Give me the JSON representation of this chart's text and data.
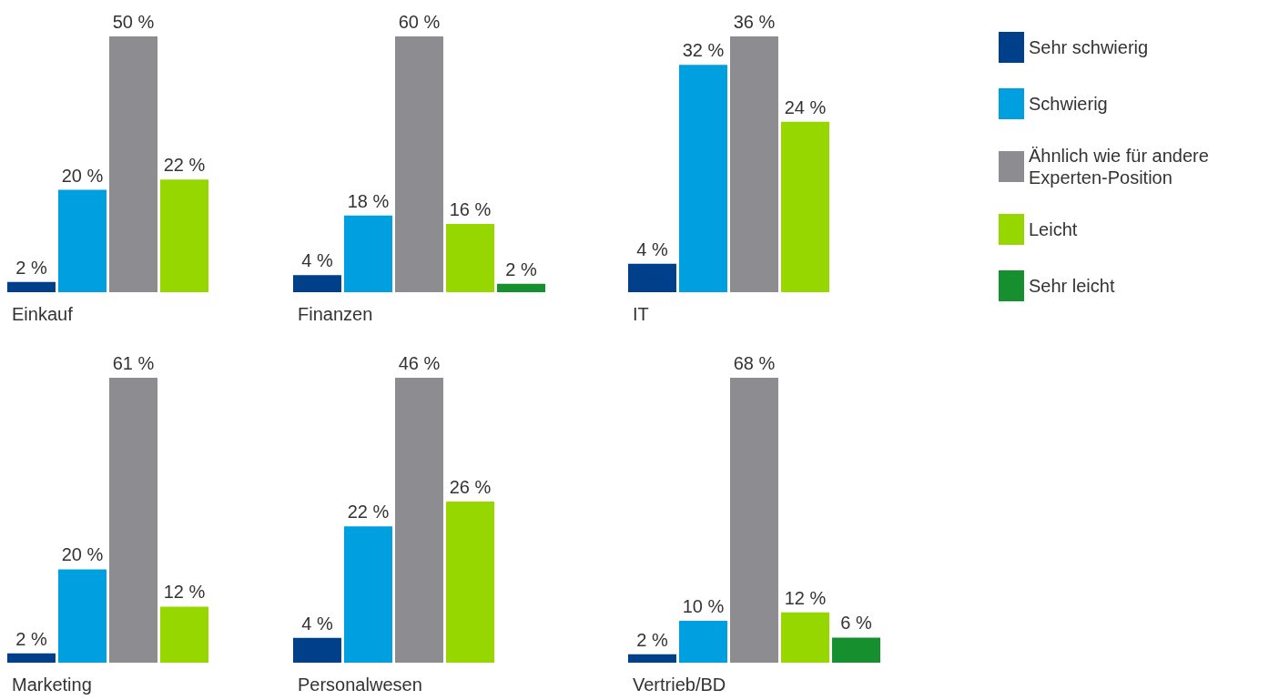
{
  "chart_data": [
    {
      "type": "bar",
      "xlabel": "Einkauf",
      "categories": [
        null
      ],
      "series": [
        {
          "color": "#003f8a",
          "values": [
            2
          ],
          "value_labels": [
            "2 %"
          ]
        },
        {
          "color": "#009fe0",
          "values": [
            20
          ],
          "value_labels": [
            "20 %"
          ]
        },
        {
          "color": "#8c8c91",
          "values": [
            50
          ],
          "value_labels": [
            "50 %"
          ]
        },
        {
          "color": "#97d700",
          "values": [
            22
          ],
          "value_labels": [
            "22 %"
          ]
        },
        {
          "color": "#16902e",
          "values": [
            null
          ],
          "value_labels": [
            null
          ]
        }
      ]
    },
    {
      "type": "bar",
      "xlabel": "Finanzen",
      "categories": [
        null
      ],
      "series": [
        {
          "color": "#003f8a",
          "values": [
            4
          ],
          "value_labels": [
            "4 %"
          ]
        },
        {
          "color": "#009fe0",
          "values": [
            18
          ],
          "value_labels": [
            "18 %"
          ]
        },
        {
          "color": "#8c8c91",
          "values": [
            60
          ],
          "value_labels": [
            "60 %"
          ]
        },
        {
          "color": "#97d700",
          "values": [
            16
          ],
          "value_labels": [
            "16 %"
          ]
        },
        {
          "color": "#16902e",
          "values": [
            2
          ],
          "value_labels": [
            "2 %"
          ]
        }
      ]
    },
    {
      "type": "bar",
      "xlabel": "IT",
      "categories": [
        null
      ],
      "series": [
        {
          "color": "#003f8a",
          "values": [
            4
          ],
          "value_labels": [
            "4 %"
          ]
        },
        {
          "color": "#009fe0",
          "values": [
            32
          ],
          "value_labels": [
            "32 %"
          ]
        },
        {
          "color": "#8c8c91",
          "values": [
            36
          ],
          "value_labels": [
            "36 %"
          ]
        },
        {
          "color": "#97d700",
          "values": [
            24
          ],
          "value_labels": [
            "24 %"
          ]
        },
        {
          "color": "#16902e",
          "values": [
            null
          ],
          "value_labels": [
            null
          ]
        }
      ]
    },
    {
      "type": "bar",
      "xlabel": "Marketing",
      "categories": [
        null
      ],
      "series": [
        {
          "color": "#003f8a",
          "values": [
            2
          ],
          "value_labels": [
            "2 %"
          ]
        },
        {
          "color": "#009fe0",
          "values": [
            20
          ],
          "value_labels": [
            "20 %"
          ]
        },
        {
          "color": "#8c8c91",
          "values": [
            61
          ],
          "value_labels": [
            "61 %"
          ]
        },
        {
          "color": "#97d700",
          "values": [
            12
          ],
          "value_labels": [
            "12 %"
          ]
        },
        {
          "color": "#16902e",
          "values": [
            null
          ],
          "value_labels": [
            null
          ]
        }
      ]
    },
    {
      "type": "bar",
      "xlabel": "Personalwesen",
      "categories": [
        null
      ],
      "series": [
        {
          "color": "#003f8a",
          "values": [
            4
          ],
          "value_labels": [
            "4 %"
          ]
        },
        {
          "color": "#009fe0",
          "values": [
            22
          ],
          "value_labels": [
            "22 %"
          ]
        },
        {
          "color": "#8c8c91",
          "values": [
            46
          ],
          "value_labels": [
            "46 %"
          ]
        },
        {
          "color": "#97d700",
          "values": [
            26
          ],
          "value_labels": [
            "26 %"
          ]
        },
        {
          "color": "#16902e",
          "values": [
            null
          ],
          "value_labels": [
            null
          ]
        }
      ]
    },
    {
      "type": "bar",
      "xlabel": "Vertrieb/BD",
      "categories": [
        null
      ],
      "legend": "top right",
      "series": [
        {
          "name": "Sehr schwierig",
          "color": "#003f8a",
          "values": [
            2
          ],
          "value_labels": [
            "2 %"
          ]
        },
        {
          "name": "Schwierig",
          "color": "#009fe0",
          "values": [
            10
          ],
          "value_labels": [
            "10 %"
          ]
        },
        {
          "name": "Ähnlich wie für andere Experten-Position",
          "color": "#8c8c91",
          "values": [
            68
          ],
          "value_labels": [
            "68 %"
          ]
        },
        {
          "name": "Leicht",
          "color": "#97d700",
          "values": [
            12
          ],
          "value_labels": [
            "12 %"
          ]
        },
        {
          "name": "Sehr leicht",
          "color": "#16902e",
          "values": [
            6
          ],
          "value_labels": [
            "6 %"
          ]
        }
      ]
    }
  ]
}
